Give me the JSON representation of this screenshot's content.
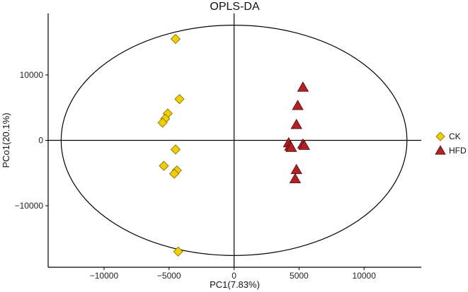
{
  "chart_data": {
    "type": "scatter",
    "title": "OPLS-DA",
    "xlabel": "PC1(7.83%)",
    "ylabel": "PCo1(20.1%)",
    "xlim": [
      -14300,
      14400
    ],
    "ylim": [
      -19400,
      19400
    ],
    "x_ticks": [
      -10000,
      -5000,
      0,
      5000,
      10000
    ],
    "x_tick_labels": [
      "−10000",
      "−5000",
      "0",
      "5000",
      "10000"
    ],
    "y_ticks": [
      -10000,
      0,
      10000
    ],
    "y_tick_labels": [
      "−10000",
      "0",
      "10000"
    ],
    "reference_lines": {
      "x": 0,
      "y": 0
    },
    "confidence_ellipse": {
      "center": [
        0,
        0
      ],
      "semi_x": 13300,
      "semi_y": 17600
    },
    "legend_position": "right",
    "series": [
      {
        "name": "CK",
        "marker": "diamond",
        "color": "#f2cd00",
        "edge_color": "#7a6a00",
        "points": [
          [
            -4500,
            15500
          ],
          [
            -4200,
            6300
          ],
          [
            -5100,
            4100
          ],
          [
            -5300,
            3300
          ],
          [
            -5500,
            2700
          ],
          [
            -4500,
            -1400
          ],
          [
            -5400,
            -3900
          ],
          [
            -4400,
            -4600
          ],
          [
            -4600,
            -5100
          ],
          [
            -4300,
            -17000
          ]
        ]
      },
      {
        "name": "HFD",
        "marker": "triangle",
        "color": "#b22222",
        "edge_color": "#4a0d0d",
        "points": [
          [
            5300,
            8100
          ],
          [
            4900,
            5300
          ],
          [
            4800,
            2400
          ],
          [
            4200,
            -400
          ],
          [
            4300,
            -900
          ],
          [
            4400,
            -1100
          ],
          [
            5300,
            -600
          ],
          [
            5400,
            -800
          ],
          [
            4800,
            -4500
          ],
          [
            4700,
            -5900
          ]
        ]
      }
    ]
  }
}
